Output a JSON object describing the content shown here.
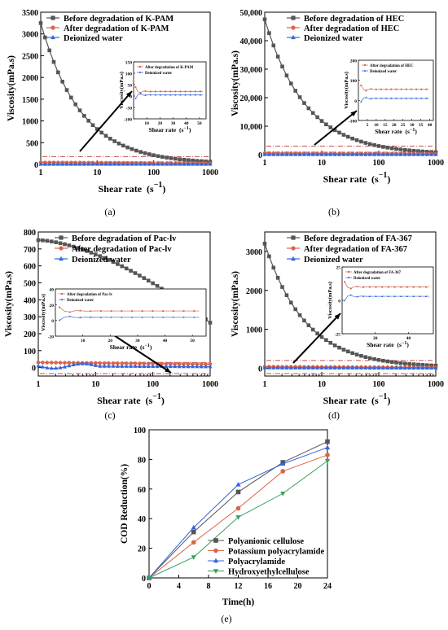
{
  "chart_data": [
    {
      "type": "line",
      "panel_label": "(a)",
      "xlabel": "Shear rate",
      "xunit": "(s",
      "xunit_exp": "−1",
      "xunit_close": ")",
      "ylabel": "Viscosity(mPa.s)",
      "x_scale": "log",
      "xlim": [
        1,
        1000
      ],
      "ylim": [
        0,
        3500
      ],
      "yticks": [
        0,
        500,
        1000,
        1500,
        2000,
        2500,
        3000,
        3500
      ],
      "ytick_labels": [
        "0",
        "500",
        "1000",
        "1500",
        "2000",
        "2500",
        "3000",
        "3500"
      ],
      "xticks": [
        1,
        10,
        100,
        1000
      ],
      "xtick_labels": [
        "1",
        "10",
        "100",
        "1000"
      ],
      "legend_position": "top-left",
      "series": [
        {
          "name": "Before degradation of K-PAM",
          "color": "#555555",
          "marker": "square",
          "start": 3250,
          "end": 15,
          "shape": "exp"
        },
        {
          "name": "After degradation of K-PAM",
          "color": "#d9644b",
          "marker": "circle",
          "start": 45,
          "end": 25,
          "shape": "flat"
        },
        {
          "name": "Deionized water",
          "color": "#3366dd",
          "marker": "triangle",
          "start": 5,
          "end": 3,
          "shape": "flat"
        }
      ],
      "annotation_box_y": 180,
      "inset": {
        "xlim": [
          0,
          55
        ],
        "ylim": [
          -100,
          150
        ],
        "yticks": [
          -100,
          -50,
          0,
          50,
          100,
          150
        ],
        "ytick_labels": [
          "-100",
          "-50",
          "0",
          "50",
          "100",
          "150"
        ],
        "xticks": [
          10,
          20,
          30,
          40,
          50
        ],
        "xtick_labels": [
          "10",
          "20",
          "30",
          "40",
          "50"
        ],
        "ylabel": "Viscosity(mPa.s)",
        "xlabel": "Shear rate",
        "xunit": "(s",
        "xunit_exp": "−1",
        "xunit_close": ")",
        "series_names": [
          "After degradation of K-PAM",
          "Deionized water"
        ],
        "after_level": 20,
        "water_level": 5
      }
    },
    {
      "type": "line",
      "panel_label": "(b)",
      "xlabel": "Shear rate",
      "xunit": "(s",
      "xunit_exp": "−1",
      "xunit_close": ")",
      "ylabel": "Viscosity(mPa.s)",
      "x_scale": "log",
      "xlim": [
        1,
        1000
      ],
      "ylim": [
        0,
        50000
      ],
      "yticks": [
        0,
        10000,
        20000,
        30000,
        40000,
        50000
      ],
      "ytick_labels": [
        "0",
        "10,000",
        "20,000",
        "30,000",
        "40,000",
        "50,000"
      ],
      "xticks": [
        1,
        10,
        100,
        1000
      ],
      "xtick_labels": [
        "1",
        "10",
        "100",
        "1000"
      ],
      "legend_position": "top-right",
      "series": [
        {
          "name": "Before degradation of HEC",
          "color": "#555555",
          "marker": "square",
          "start": 47500,
          "end": 150,
          "shape": "exp"
        },
        {
          "name": "After degradation of HEC",
          "color": "#d9644b",
          "marker": "circle",
          "start": 500,
          "end": 300,
          "shape": "flat"
        },
        {
          "name": "Deionized water",
          "color": "#3366dd",
          "marker": "triangle",
          "start": 40,
          "end": 20,
          "shape": "flat"
        }
      ],
      "annotation_box_y": 3000,
      "inset": {
        "xlim": [
          0,
          42
        ],
        "ylim": [
          -100,
          200
        ],
        "yticks": [
          -100,
          0,
          100,
          200
        ],
        "ytick_labels": [
          "-100",
          "0",
          "100",
          "200"
        ],
        "xticks": [
          5,
          10,
          15,
          20,
          25,
          30,
          35,
          40
        ],
        "xtick_labels": [
          "5",
          "10",
          "15",
          "20",
          "25",
          "30",
          "35",
          "40"
        ],
        "ylabel": "Viscosity(mPa.s)",
        "xlabel": "Shear rate",
        "xunit": "(s",
        "xunit_exp": "−1",
        "xunit_close": ")",
        "series_names": [
          "After degradation of HEC",
          "Deionized water"
        ],
        "after_level": 55,
        "water_level": 10
      }
    },
    {
      "type": "line",
      "panel_label": "(c)",
      "xlabel": "Shear rate",
      "xunit": "(s",
      "xunit_exp": "−1",
      "xunit_close": ")",
      "ylabel": "Viscosity(mPa.s)",
      "x_scale": "log",
      "xlim": [
        1,
        1000
      ],
      "ylim": [
        -50,
        800
      ],
      "yticks": [
        0,
        100,
        200,
        300,
        400,
        500,
        600,
        700,
        800
      ],
      "ytick_labels": [
        "0",
        "100",
        "200",
        "300",
        "400",
        "500",
        "600",
        "700",
        "800"
      ],
      "xticks": [
        1,
        10,
        100,
        1000
      ],
      "xtick_labels": [
        "1",
        "10",
        "100",
        "1000"
      ],
      "legend_position": "top-right",
      "series": [
        {
          "name": "Before degradation of Pac-lv",
          "color": "#555555",
          "marker": "square",
          "start": 752,
          "end": 265,
          "shape": "slow"
        },
        {
          "name": "After degradation of Pac-lv",
          "color": "#d9644b",
          "marker": "circle",
          "start": 30,
          "end": 20,
          "shape": "flat"
        },
        {
          "name": "Deionized water",
          "color": "#3366dd",
          "marker": "triangle",
          "start": 10,
          "end": 5,
          "shape": "wavy"
        }
      ],
      "annotation_box_y": 30,
      "inset": {
        "xlim": [
          0,
          55
        ],
        "ylim": [
          -20,
          40
        ],
        "yticks": [
          -20,
          0,
          20,
          40
        ],
        "ytick_labels": [
          "-20",
          "0",
          "20",
          "40"
        ],
        "xticks": [
          10,
          20,
          30,
          40,
          50
        ],
        "xtick_labels": [
          "10",
          "20",
          "30",
          "40",
          "50"
        ],
        "ylabel": "Viscosity(mPa.s)",
        "xlabel": "Shear rate",
        "xunit": "(s",
        "xunit_exp": "−1",
        "xunit_close": ")",
        "series_names": [
          "After degradation of Pac-lv",
          "Deionized water"
        ],
        "after_level": 12,
        "water_level": 4
      }
    },
    {
      "type": "line",
      "panel_label": "(d)",
      "xlabel": "Shear rate",
      "xunit": "(s",
      "xunit_exp": "−1",
      "xunit_close": ")",
      "ylabel": "Viscosity(mPa.s)",
      "x_scale": "log",
      "xlim": [
        1,
        1000
      ],
      "ylim": [
        -200,
        3500
      ],
      "yticks": [
        0,
        1000,
        2000,
        3000
      ],
      "ytick_labels": [
        "0",
        "1000",
        "2000",
        "3000"
      ],
      "xticks": [
        1,
        10,
        100,
        1000
      ],
      "xtick_labels": [
        "1",
        "10",
        "100",
        "1000"
      ],
      "legend_position": "top-right",
      "series": [
        {
          "name": "Before degradation of FA-367",
          "color": "#555555",
          "marker": "square",
          "start": 3200,
          "end": 20,
          "shape": "exp"
        },
        {
          "name": "After degradation of FA-367",
          "color": "#d9644b",
          "marker": "circle",
          "start": 40,
          "end": 20,
          "shape": "flat"
        },
        {
          "name": "Deionized water",
          "color": "#3366dd",
          "marker": "triangle",
          "start": 10,
          "end": 5,
          "shape": "flat"
        }
      ],
      "annotation_box_y": 200,
      "inset": {
        "xlim": [
          0,
          55
        ],
        "ylim": [
          -25,
          25
        ],
        "yticks": [
          -25,
          0,
          25
        ],
        "ytick_labels": [
          "-25",
          "0",
          "25"
        ],
        "xticks": [
          20,
          40
        ],
        "xtick_labels": [
          "20",
          "40"
        ],
        "ylabel": "Viscosity(mPa.s)",
        "xlabel": "Shear rate",
        "xunit": "(s",
        "xunit_exp": "−1",
        "xunit_close": ")",
        "series_names": [
          "After degradation of FA-367",
          "Deionized water"
        ],
        "after_level": 10,
        "water_level": 3
      }
    },
    {
      "type": "line",
      "panel_label": "(e)",
      "xlabel": "Time(h)",
      "ylabel": "COD Reduction(%)",
      "xlim": [
        0,
        24
      ],
      "ylim": [
        0,
        100
      ],
      "xticks": [
        0,
        4,
        8,
        12,
        16,
        20,
        24
      ],
      "xtick_labels": [
        "0",
        "4",
        "8",
        "12",
        "16",
        "20",
        "24"
      ],
      "yticks": [
        0,
        20,
        40,
        60,
        80,
        100
      ],
      "ytick_labels": [
        "0",
        "20",
        "40",
        "60",
        "80",
        "100"
      ],
      "legend_position": "bottom-right",
      "x": [
        0,
        6,
        12,
        18,
        24
      ],
      "series": [
        {
          "name": "Polyanionic cellulose",
          "color": "#555555",
          "marker": "square",
          "values": [
            0,
            31,
            58,
            78,
            92
          ]
        },
        {
          "name": "Potassium polyacrylamide",
          "color": "#d9644b",
          "marker": "circle",
          "values": [
            0,
            24,
            47,
            72,
            83
          ]
        },
        {
          "name": "Polyacrylamide",
          "color": "#3366dd",
          "marker": "triangle",
          "values": [
            0,
            34,
            63,
            77,
            88
          ]
        },
        {
          "name": "Hydroxyethylcellulose",
          "color": "#3aa05a",
          "marker": "triangle-down",
          "values": [
            0,
            14,
            41,
            57,
            79
          ]
        }
      ]
    }
  ]
}
